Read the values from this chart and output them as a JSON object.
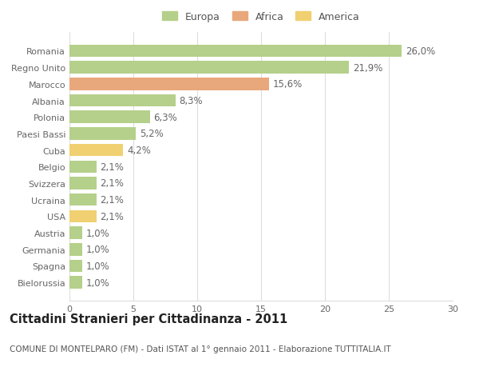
{
  "categories": [
    "Romania",
    "Regno Unito",
    "Marocco",
    "Albania",
    "Polonia",
    "Paesi Bassi",
    "Cuba",
    "Belgio",
    "Svizzera",
    "Ucraina",
    "USA",
    "Austria",
    "Germania",
    "Spagna",
    "Bielorussia"
  ],
  "values": [
    26.0,
    21.9,
    15.6,
    8.3,
    6.3,
    5.2,
    4.2,
    2.1,
    2.1,
    2.1,
    2.1,
    1.0,
    1.0,
    1.0,
    1.0
  ],
  "labels": [
    "26,0%",
    "21,9%",
    "15,6%",
    "8,3%",
    "6,3%",
    "5,2%",
    "4,2%",
    "2,1%",
    "2,1%",
    "2,1%",
    "2,1%",
    "1,0%",
    "1,0%",
    "1,0%",
    "1,0%"
  ],
  "colors": [
    "#b5d08a",
    "#b5d08a",
    "#e8a87c",
    "#b5d08a",
    "#b5d08a",
    "#b5d08a",
    "#f0d070",
    "#b5d08a",
    "#b5d08a",
    "#b5d08a",
    "#f0d070",
    "#b5d08a",
    "#b5d08a",
    "#b5d08a",
    "#b5d08a"
  ],
  "legend": [
    {
      "label": "Europa",
      "color": "#b5d08a"
    },
    {
      "label": "Africa",
      "color": "#e8a87c"
    },
    {
      "label": "America",
      "color": "#f0d070"
    }
  ],
  "xlim": [
    0,
    30
  ],
  "xticks": [
    0,
    5,
    10,
    15,
    20,
    25,
    30
  ],
  "title": "Cittadini Stranieri per Cittadinanza - 2011",
  "subtitle": "COMUNE DI MONTELPARO (FM) - Dati ISTAT al 1° gennaio 2011 - Elaborazione TUTTITALIA.IT",
  "background_color": "#ffffff",
  "grid_color": "#dddddd",
  "bar_height": 0.75,
  "label_fontsize": 8.5,
  "tick_fontsize": 8,
  "title_fontsize": 10.5,
  "subtitle_fontsize": 7.5
}
